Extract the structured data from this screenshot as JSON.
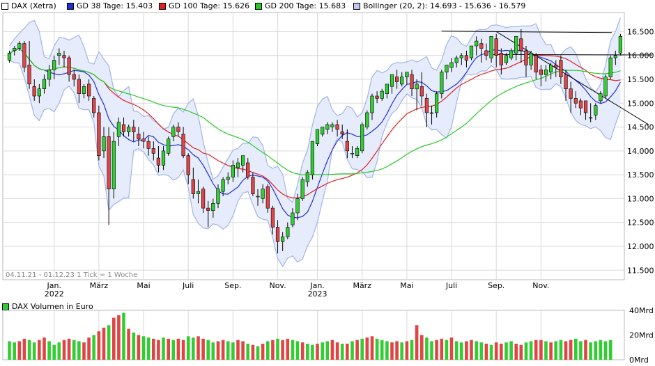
{
  "legend": [
    {
      "label": "DAX (Xetra)",
      "color": "#ffffff"
    },
    {
      "label": "GD 38 Tage: 15.403",
      "color": "#1f2fd6"
    },
    {
      "label": "GD 100 Tage: 15.626",
      "color": "#e02020"
    },
    {
      "label": "GD 200 Tage: 15.683",
      "color": "#28c828"
    },
    {
      "label": "Bollinger (20, 2): 14.693 - 15.636 - 16.579",
      "color": "#bcc8ee"
    }
  ],
  "info_text": "04.11.21 - 01.12.23   1 Tick = 1 Woche",
  "volume_title": "DAX Volumen in Euro",
  "chart_data": {
    "type": "candlestick",
    "y_ticks": [
      "16.500",
      "16.000",
      "15.500",
      "15.000",
      "14.500",
      "14.000",
      "13.500",
      "13.000",
      "12.500",
      "12.000",
      "11.500"
    ],
    "y_tick_values": [
      16500,
      16000,
      15500,
      15000,
      14500,
      14000,
      13500,
      13000,
      12500,
      12000,
      11500
    ],
    "ylim": [
      11300,
      16900
    ],
    "x_ticks": [
      {
        "label": "Jan.",
        "sub": "2022",
        "week": 9
      },
      {
        "label": "März",
        "sub": "",
        "week": 18
      },
      {
        "label": "Mai",
        "sub": "",
        "week": 27
      },
      {
        "label": "Juli",
        "sub": "",
        "week": 36
      },
      {
        "label": "Sep.",
        "sub": "",
        "week": 45
      },
      {
        "label": "Nov.",
        "sub": "",
        "week": 54
      },
      {
        "label": "Jan.",
        "sub": "2023",
        "week": 62
      },
      {
        "label": "März",
        "sub": "",
        "week": 71
      },
      {
        "label": "Mai",
        "sub": "",
        "week": 80
      },
      {
        "label": "Juli",
        "sub": "",
        "week": 89
      },
      {
        "label": "Sep.",
        "sub": "",
        "week": 98
      },
      {
        "label": "Nov.",
        "sub": "",
        "week": 107
      }
    ],
    "candles": [
      [
        15900,
        16100,
        16050,
        15850
      ],
      [
        16100,
        16200,
        16150,
        16000
      ],
      [
        16150,
        16300,
        16250,
        16100
      ],
      [
        16250,
        16300,
        15750,
        15650
      ],
      [
        15800,
        16300,
        15400,
        15300
      ],
      [
        15350,
        15500,
        15150,
        15050
      ],
      [
        15150,
        15400,
        15300,
        15000
      ],
      [
        15300,
        15600,
        15500,
        15200
      ],
      [
        15500,
        15800,
        15700,
        15350
      ],
      [
        15700,
        16000,
        15900,
        15500
      ],
      [
        16000,
        16150,
        16050,
        15800
      ],
      [
        16000,
        16100,
        15950,
        15750
      ],
      [
        15950,
        16000,
        15600,
        15450
      ],
      [
        15600,
        15700,
        15500,
        15350
      ],
      [
        15500,
        15600,
        15200,
        15000
      ],
      [
        15200,
        15400,
        15350,
        15100
      ],
      [
        15400,
        15500,
        15150,
        15050
      ],
      [
        15100,
        15150,
        14800,
        14700
      ],
      [
        14800,
        14950,
        13900,
        13800
      ],
      [
        14000,
        14500,
        14300,
        13850
      ],
      [
        14300,
        14500,
        13200,
        12450
      ],
      [
        13200,
        14400,
        14200,
        13000
      ],
      [
        14300,
        14700,
        14600,
        14100
      ],
      [
        14550,
        14700,
        14400,
        14300
      ],
      [
        14400,
        14550,
        14500,
        14300
      ],
      [
        14500,
        14650,
        14400,
        14200
      ],
      [
        14350,
        14500,
        14250,
        14100
      ],
      [
        14250,
        14400,
        14200,
        14050
      ],
      [
        14200,
        14300,
        14050,
        13900
      ],
      [
        14050,
        14200,
        13950,
        13800
      ],
      [
        13850,
        14100,
        13700,
        13550
      ],
      [
        13700,
        14100,
        14000,
        13600
      ],
      [
        13950,
        14300,
        14250,
        13900
      ],
      [
        14300,
        14550,
        14500,
        14200
      ],
      [
        14500,
        14600,
        14400,
        14300
      ],
      [
        14350,
        14500,
        13900,
        13850
      ],
      [
        13900,
        13950,
        13500,
        13300
      ],
      [
        13400,
        13650,
        13100,
        13000
      ],
      [
        13100,
        13400,
        13150,
        12900
      ],
      [
        13200,
        13250,
        12800,
        12700
      ],
      [
        12800,
        12950,
        12750,
        12400
      ],
      [
        12750,
        13000,
        12900,
        12600
      ],
      [
        12900,
        13300,
        13200,
        12800
      ],
      [
        13150,
        13450,
        13400,
        13050
      ],
      [
        13400,
        13550,
        13450,
        13300
      ],
      [
        13450,
        13800,
        13700,
        13350
      ],
      [
        13650,
        13850,
        13750,
        13450
      ],
      [
        13700,
        13900,
        13900,
        13550
      ],
      [
        13750,
        13850,
        13450,
        13400
      ],
      [
        13450,
        13550,
        13100,
        13050
      ],
      [
        13050,
        13200,
        13050,
        12850
      ],
      [
        13000,
        13300,
        13200,
        12900
      ],
      [
        13250,
        13300,
        12800,
        12700
      ],
      [
        12800,
        12850,
        12400,
        12250
      ],
      [
        12400,
        12550,
        12100,
        11850
      ],
      [
        12100,
        12300,
        12200,
        11900
      ],
      [
        12200,
        12500,
        12400,
        12150
      ],
      [
        12450,
        12800,
        12700,
        12400
      ],
      [
        12700,
        13100,
        13000,
        12550
      ],
      [
        13000,
        13450,
        13400,
        12950
      ],
      [
        13350,
        13600,
        13550,
        13250
      ],
      [
        13500,
        14200,
        14200,
        13400
      ],
      [
        14150,
        14400,
        14450,
        14100
      ],
      [
        14350,
        14500,
        14500,
        14300
      ],
      [
        14450,
        14600,
        14550,
        14350
      ],
      [
        14500,
        14600,
        14550,
        14400
      ],
      [
        14550,
        14650,
        14450,
        14300
      ],
      [
        14400,
        14550,
        14350,
        14250
      ],
      [
        14200,
        14450,
        14000,
        13850
      ],
      [
        13950,
        14100,
        13950,
        13850
      ],
      [
        13900,
        14100,
        14050,
        13850
      ],
      [
        14000,
        14600,
        14550,
        13950
      ],
      [
        14500,
        14850,
        14800,
        14450
      ],
      [
        14800,
        15200,
        15150,
        14650
      ],
      [
        15150,
        15250,
        15100,
        15000
      ],
      [
        15100,
        15300,
        15250,
        15050
      ],
      [
        15200,
        15400,
        15400,
        15100
      ],
      [
        15350,
        15600,
        15600,
        15200
      ],
      [
        15550,
        15700,
        15450,
        15300
      ],
      [
        15400,
        15650,
        15550,
        15350
      ],
      [
        15550,
        15650,
        15650,
        15400
      ],
      [
        15600,
        15700,
        15300,
        15150
      ],
      [
        15300,
        15500,
        15400,
        14850
      ],
      [
        15350,
        15650,
        15150,
        14950
      ],
      [
        15100,
        15200,
        14800,
        14500
      ],
      [
        14800,
        14950,
        14800,
        14550
      ],
      [
        14800,
        15250,
        15200,
        14700
      ],
      [
        15200,
        15700,
        15650,
        15100
      ],
      [
        15650,
        15800,
        15800,
        15500
      ],
      [
        15750,
        15950,
        15850,
        15650
      ],
      [
        15850,
        16000,
        15950,
        15750
      ],
      [
        15950,
        16050,
        16000,
        15800
      ],
      [
        16000,
        16100,
        15900,
        15750
      ],
      [
        15950,
        16200,
        16200,
        15900
      ],
      [
        16200,
        16400,
        16300,
        16000
      ],
      [
        16250,
        16350,
        16150,
        15850
      ],
      [
        16100,
        16250,
        16000,
        15900
      ],
      [
        15950,
        16400,
        16400,
        15850
      ],
      [
        16350,
        16450,
        16000,
        15750
      ],
      [
        16050,
        16150,
        15800,
        15600
      ],
      [
        15850,
        16050,
        16000,
        15800
      ],
      [
        15950,
        16150,
        16100,
        15900
      ],
      [
        16050,
        16400,
        16400,
        15900
      ],
      [
        16350,
        16550,
        16100,
        15850
      ],
      [
        16100,
        16200,
        15800,
        15550
      ],
      [
        15800,
        16100,
        16050,
        15700
      ],
      [
        16000,
        16050,
        15650,
        15500
      ],
      [
        15700,
        15800,
        15600,
        15350
      ],
      [
        15600,
        15800,
        15700,
        15450
      ],
      [
        15650,
        15850,
        15800,
        15500
      ],
      [
        15800,
        15900,
        15750,
        15550
      ],
      [
        15900,
        16000,
        15550,
        15400
      ],
      [
        15600,
        15700,
        15300,
        15050
      ],
      [
        15300,
        15450,
        15100,
        14800
      ],
      [
        15100,
        15250,
        15000,
        14900
      ],
      [
        15050,
        15100,
        14900,
        14750
      ],
      [
        15050,
        15050,
        14800,
        14650
      ],
      [
        14700,
        15000,
        14700,
        14600
      ],
      [
        14750,
        15000,
        14950,
        14650
      ],
      [
        15050,
        15250,
        15200,
        15000
      ],
      [
        15150,
        15600,
        15550,
        15100
      ],
      [
        15550,
        16000,
        15950,
        15500
      ],
      [
        15950,
        16100,
        16000,
        15800
      ],
      [
        16050,
        16450,
        16400,
        16000
      ]
    ],
    "volume_ticks": [
      "40Mrd",
      "20Mrd",
      "0Mrd"
    ],
    "volume": [
      [
        15,
        1
      ],
      [
        14,
        1
      ],
      [
        15,
        0
      ],
      [
        17,
        0
      ],
      [
        16,
        1
      ],
      [
        14,
        1
      ],
      [
        16,
        0
      ],
      [
        18,
        0
      ],
      [
        15,
        1
      ],
      [
        12,
        1
      ],
      [
        14,
        1
      ],
      [
        16,
        0
      ],
      [
        17,
        0
      ],
      [
        16,
        1
      ],
      [
        15,
        1
      ],
      [
        14,
        0
      ],
      [
        18,
        0
      ],
      [
        20,
        1
      ],
      [
        23,
        0
      ],
      [
        26,
        0
      ],
      [
        28,
        1
      ],
      [
        34,
        0
      ],
      [
        36,
        0
      ],
      [
        38,
        1
      ],
      [
        25,
        0
      ],
      [
        22,
        1
      ],
      [
        20,
        0
      ],
      [
        19,
        1
      ],
      [
        18,
        1
      ],
      [
        17,
        0
      ],
      [
        16,
        0
      ],
      [
        18,
        1
      ],
      [
        17,
        0
      ],
      [
        16,
        1
      ],
      [
        17,
        0
      ],
      [
        16,
        0
      ],
      [
        19,
        1
      ],
      [
        18,
        1
      ],
      [
        19,
        0
      ],
      [
        17,
        0
      ],
      [
        16,
        1
      ],
      [
        14,
        1
      ],
      [
        15,
        0
      ],
      [
        16,
        0
      ],
      [
        15,
        1
      ],
      [
        14,
        1
      ],
      [
        16,
        0
      ],
      [
        15,
        0
      ],
      [
        13,
        1
      ],
      [
        12,
        0
      ],
      [
        11,
        1
      ],
      [
        13,
        0
      ],
      [
        15,
        1
      ],
      [
        16,
        0
      ],
      [
        17,
        1
      ],
      [
        16,
        0
      ],
      [
        17,
        0
      ],
      [
        16,
        1
      ],
      [
        15,
        1
      ],
      [
        14,
        0
      ],
      [
        13,
        1
      ],
      [
        12,
        1
      ],
      [
        13,
        0
      ],
      [
        14,
        1
      ],
      [
        15,
        1
      ],
      [
        16,
        0
      ],
      [
        14,
        0
      ],
      [
        13,
        1
      ],
      [
        13,
        0
      ],
      [
        15,
        1
      ],
      [
        16,
        0
      ],
      [
        17,
        1
      ],
      [
        18,
        0
      ],
      [
        19,
        0
      ],
      [
        17,
        1
      ],
      [
        16,
        1
      ],
      [
        15,
        1
      ],
      [
        14,
        0
      ],
      [
        15,
        0
      ],
      [
        14,
        1
      ],
      [
        15,
        0
      ],
      [
        16,
        1
      ],
      [
        28,
        0
      ],
      [
        20,
        0
      ],
      [
        18,
        1
      ],
      [
        15,
        1
      ],
      [
        16,
        0
      ],
      [
        17,
        0
      ],
      [
        16,
        1
      ],
      [
        18,
        0
      ],
      [
        15,
        1
      ],
      [
        14,
        1
      ],
      [
        15,
        0
      ],
      [
        16,
        0
      ],
      [
        15,
        1
      ],
      [
        14,
        1
      ],
      [
        13,
        0
      ],
      [
        12,
        1
      ],
      [
        14,
        0
      ],
      [
        13,
        0
      ],
      [
        14,
        1
      ],
      [
        15,
        1
      ],
      [
        13,
        0
      ],
      [
        12,
        0
      ],
      [
        14,
        1
      ],
      [
        15,
        1
      ],
      [
        16,
        0
      ],
      [
        16,
        0
      ],
      [
        15,
        1
      ],
      [
        14,
        0
      ],
      [
        15,
        1
      ],
      [
        16,
        1
      ],
      [
        15,
        0
      ],
      [
        16,
        0
      ],
      [
        17,
        1
      ],
      [
        15,
        1
      ],
      [
        16,
        0
      ],
      [
        14,
        1
      ],
      [
        15,
        1
      ],
      [
        16,
        1
      ],
      [
        15,
        1
      ],
      [
        16,
        1
      ]
    ],
    "colors": {
      "up": "#32cd32",
      "down": "#e04545",
      "band_fill": "#e6ecfb",
      "band_line": "#9fb4e8",
      "grid": "#d9d9d9"
    }
  }
}
